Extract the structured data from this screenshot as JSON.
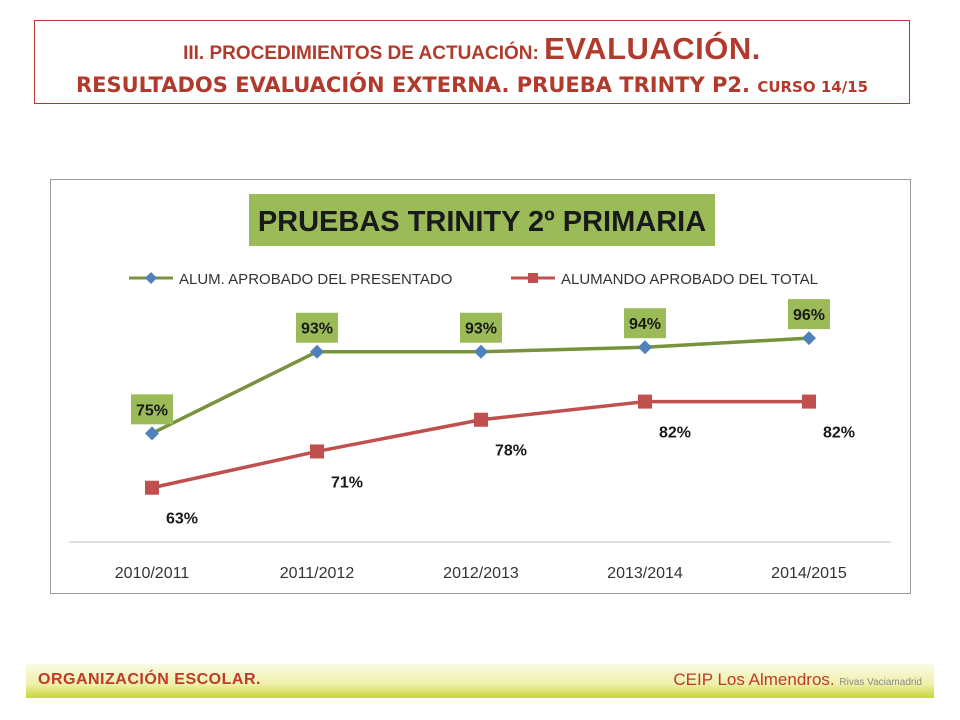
{
  "header": {
    "line1_prefix": "III. PROCEDIMIENTOS DE ACTUACIÓN: ",
    "line1_big": "EVALUACIÓN.",
    "line2_main": "RESULTADOS EVALUACIÓN EXTERNA. PRUEBA TRINTY P2. ",
    "line2_small": "CURSO 14/15"
  },
  "footer": {
    "left": "ORGANIZACIÓN ESCOLAR.",
    "right_main": "CEIP Los Almendros.",
    "right_small": "Rivas Vaciamadrid"
  },
  "colors": {
    "header_text": "#b23a2c",
    "series1": "#77933c",
    "series1_marker": "#4f81bd",
    "series2": "#c0504d",
    "label_bg": "#9bbb59",
    "title_bg": "#9bbb59"
  },
  "chart_data": {
    "type": "line",
    "title": "PRUEBAS TRINITY 2º PRIMARIA",
    "categories": [
      "2010/2011",
      "2011/2012",
      "2012/2013",
      "2013/2014",
      "2014/2015"
    ],
    "ylim": [
      55,
      100
    ],
    "legend_position": "top",
    "grid": false,
    "series": [
      {
        "name": "ALUM. APROBADO DEL PRESENTADO",
        "values": [
          75,
          93,
          93,
          94,
          96
        ],
        "labels": [
          "75%",
          "93%",
          "93%",
          "94%",
          "96%"
        ],
        "marker": "diamond"
      },
      {
        "name": "ALUMANDO APROBADO DEL TOTAL",
        "values": [
          63,
          71,
          78,
          82,
          82
        ],
        "labels": [
          "63%",
          "71%",
          "78%",
          "82%",
          "82%"
        ],
        "marker": "square"
      }
    ]
  }
}
